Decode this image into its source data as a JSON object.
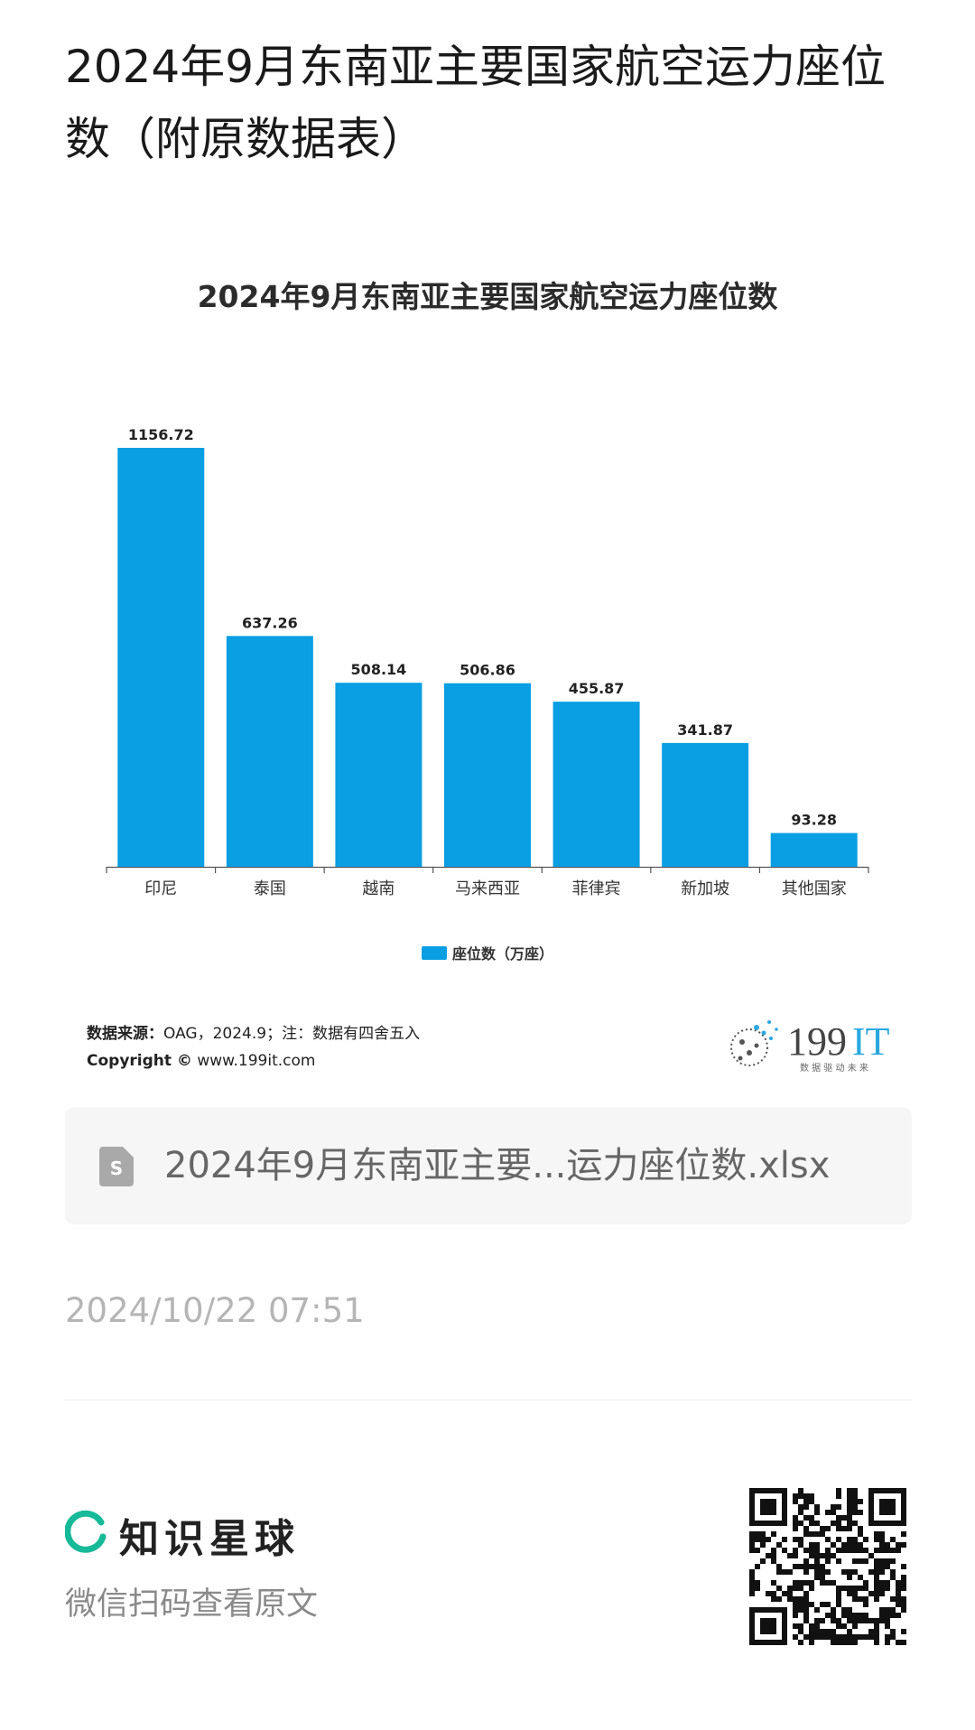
{
  "page": {
    "title": "2024年9月东南亚主要国家航空运力座位数（附原数据表）"
  },
  "chart_data": {
    "type": "bar",
    "title": "2024年9月东南亚主要国家航空运力座位数",
    "categories": [
      "印尼",
      "泰国",
      "越南",
      "马来西亚",
      "菲律宾",
      "新加坡",
      "其他国家"
    ],
    "series": [
      {
        "name": "座位数（万座）",
        "values": [
          1156.72,
          637.26,
          508.14,
          506.86,
          455.87,
          341.87,
          93.28
        ]
      }
    ],
    "value_labels": [
      "1156.72",
      "637.26",
      "508.14",
      "506.86",
      "455.87",
      "341.87",
      "93.28"
    ],
    "ylim": [
      0,
      1156.72
    ],
    "grid": false,
    "legend_position": "bottom",
    "bar_color": "#0a9ee2"
  },
  "source": {
    "label": "数据来源：",
    "text": "OAG，2024.9；注：数据有四舍五入",
    "copyright_label": "Copyright ©",
    "copyright_site": "www.199it.com"
  },
  "brand": {
    "name_number": "199",
    "name_letters": "IT",
    "slogan": "数 据 驱 动 未 来"
  },
  "attachment": {
    "icon": "spreadsheet-file-icon",
    "file_name": "2024年9月东南亚主要...运力座位数.xlsx"
  },
  "meta": {
    "timestamp": "2024/10/22 07:51"
  },
  "footer": {
    "app_name": "知识星球",
    "scan_hint": "微信扫码查看原文",
    "accent": "#16b998"
  }
}
